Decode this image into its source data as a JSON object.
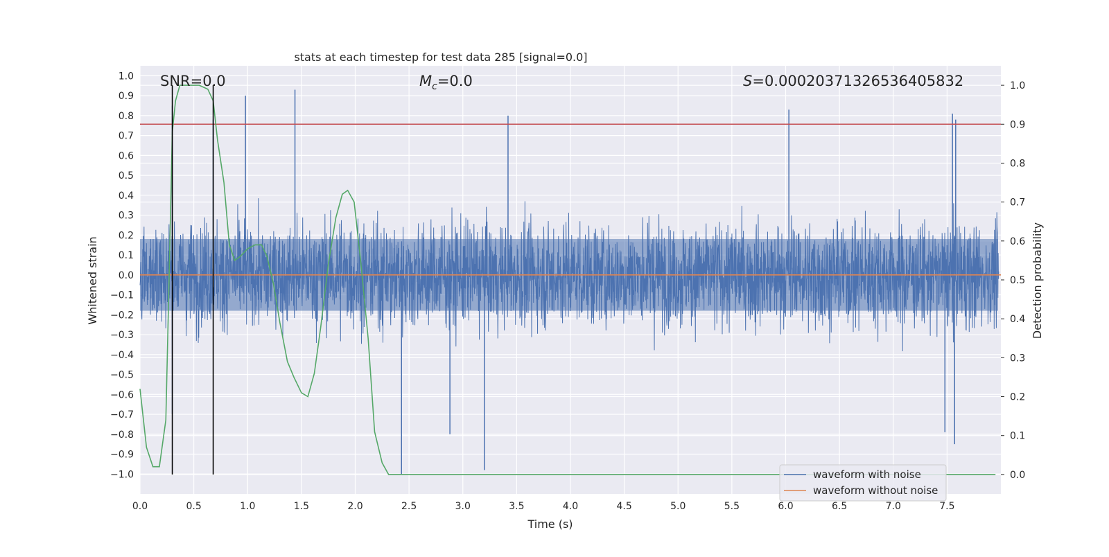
{
  "chart_data": {
    "type": "line",
    "title": "stats at each timestep for test data 285 [signal=0.0]",
    "xlabel": "Time (s)",
    "ylabel_left": "Whitened strain",
    "ylabel_right": "Detection probability",
    "xlim": [
      0.0,
      8.0
    ],
    "ylim_left": [
      -1.1,
      1.05
    ],
    "ylim_right": [
      -0.05,
      1.05
    ],
    "x_ticks": [
      "0.0",
      "0.5",
      "1.0",
      "1.5",
      "2.0",
      "2.5",
      "3.0",
      "3.5",
      "4.0",
      "4.5",
      "5.0",
      "5.5",
      "6.0",
      "6.5",
      "7.0",
      "7.5"
    ],
    "y_ticks_left": [
      "1.0",
      "0.9",
      "0.8",
      "0.7",
      "0.6",
      "0.5",
      "0.4",
      "0.3",
      "0.2",
      "0.1",
      "0.0",
      "−0.1",
      "−0.2",
      "−0.3",
      "−0.4",
      "−0.5",
      "−0.6",
      "−0.7",
      "−0.8",
      "−0.9",
      "−1.0"
    ],
    "y_ticks_right": [
      "1.0",
      "0.9",
      "0.8",
      "0.7",
      "0.6",
      "0.5",
      "0.4",
      "0.3",
      "0.2",
      "0.1",
      "0.0"
    ],
    "grid": true,
    "annotations": {
      "snr": "SNR=0.0",
      "mc": "=0.0",
      "mc_symbol": "M",
      "mc_sub": "c",
      "s": "=0.0002037132653640583​2",
      "s_symbol": "S"
    },
    "detection_threshold": 0.9,
    "vertical_markers": [
      0.3,
      0.68
    ],
    "legend": {
      "position": "lower-right",
      "entries": [
        {
          "label": "waveform with noise",
          "color": "#4c72b0"
        },
        {
          "label": "waveform without noise",
          "color": "#dd8452"
        }
      ]
    },
    "series": [
      {
        "name": "waveform with noise",
        "axis": "left",
        "kind": "noise",
        "color": "#4c72b0",
        "notable_peaks": [
          {
            "x": 0.98,
            "y": 0.9
          },
          {
            "x": 1.44,
            "y": 0.93
          },
          {
            "x": 3.42,
            "y": 0.8
          },
          {
            "x": 6.03,
            "y": 0.83
          },
          {
            "x": 7.55,
            "y": 0.81
          },
          {
            "x": 7.58,
            "y": 0.78
          },
          {
            "x": 0.3,
            "y": 0.85
          },
          {
            "x": 0.68,
            "y": 0.78
          }
        ],
        "notable_troughs": [
          {
            "x": 2.43,
            "y": -1.0
          },
          {
            "x": 3.2,
            "y": -0.98
          },
          {
            "x": 7.57,
            "y": -0.85
          },
          {
            "x": 2.88,
            "y": -0.8
          },
          {
            "x": 7.48,
            "y": -0.79
          },
          {
            "x": 0.3,
            "y": -0.7
          }
        ]
      },
      {
        "name": "waveform without noise",
        "axis": "left",
        "color": "#dd8452",
        "x": [
          0.0,
          8.0
        ],
        "y": [
          0.0,
          0.0
        ]
      },
      {
        "name": "detection probability",
        "axis": "right",
        "color": "#55a868",
        "x": [
          0.0,
          0.06,
          0.12,
          0.18,
          0.24,
          0.27,
          0.3,
          0.33,
          0.37,
          0.45,
          0.55,
          0.63,
          0.68,
          0.72,
          0.78,
          0.83,
          0.88,
          0.93,
          1.0,
          1.07,
          1.13,
          1.18,
          1.24,
          1.3,
          1.37,
          1.43,
          1.5,
          1.56,
          1.62,
          1.68,
          1.75,
          1.82,
          1.88,
          1.93,
          1.99,
          2.05,
          2.12,
          2.18,
          2.25,
          2.31,
          2.4,
          3.0,
          4.0,
          5.0,
          6.0,
          7.0,
          7.95
        ],
        "y": [
          0.22,
          0.07,
          0.02,
          0.02,
          0.14,
          0.5,
          0.88,
          0.96,
          1.0,
          1.0,
          1.0,
          0.99,
          0.96,
          0.86,
          0.75,
          0.59,
          0.55,
          0.56,
          0.58,
          0.59,
          0.59,
          0.56,
          0.49,
          0.39,
          0.29,
          0.25,
          0.21,
          0.2,
          0.26,
          0.38,
          0.54,
          0.66,
          0.72,
          0.73,
          0.7,
          0.55,
          0.35,
          0.11,
          0.03,
          0.0,
          0.0,
          0.0,
          0.0,
          0.0,
          0.0,
          0.0,
          0.0
        ]
      }
    ]
  }
}
